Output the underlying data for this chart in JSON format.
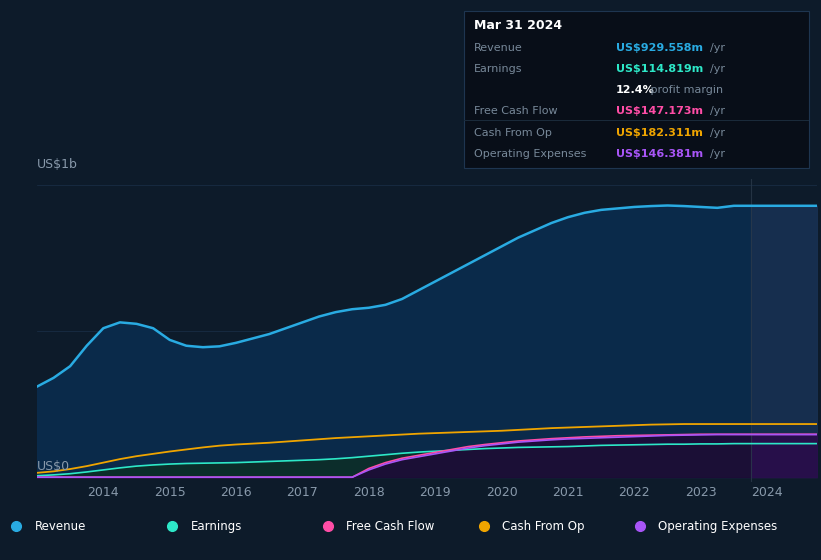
{
  "background_color": "#0d1b2a",
  "plot_bg_color": "#0d1b2a",
  "grid_color": "#1e3550",
  "text_color": "#8899aa",
  "ylabel_text": "US$1b",
  "y0_text": "US$0",
  "x_labels": [
    "2014",
    "2015",
    "2016",
    "2017",
    "2018",
    "2019",
    "2020",
    "2021",
    "2022",
    "2023",
    "2024"
  ],
  "series_colors": {
    "Revenue": "#29abe2",
    "Earnings": "#2de8c8",
    "Free Cash Flow": "#ff4da6",
    "Cash From Op": "#f0a500",
    "Operating Expenses": "#a855f7"
  },
  "fill_colors": {
    "Revenue": "#0a2a4a",
    "Earnings": "#0d2e28",
    "Operating Expenses": "#2a1a4a"
  },
  "tooltip": {
    "date": "Mar 31 2024",
    "bg": "#080e18",
    "border": "#2a3a4a",
    "rows": [
      {
        "label": "Revenue",
        "value": "US$929.558m",
        "unit": "/yr",
        "color": "#29abe2"
      },
      {
        "label": "Earnings",
        "value": "US$114.819m",
        "unit": "/yr",
        "color": "#2de8c8"
      },
      {
        "label": "",
        "value": "12.4%",
        "unit": " profit margin",
        "color": "#ffffff"
      },
      {
        "label": "Free Cash Flow",
        "value": "US$147.173m",
        "unit": "/yr",
        "color": "#ff4da6"
      },
      {
        "label": "Cash From Op",
        "value": "US$182.311m",
        "unit": "/yr",
        "color": "#f0a500"
      },
      {
        "label": "Operating Expenses",
        "value": "US$146.381m",
        "unit": "/yr",
        "color": "#a855f7"
      }
    ]
  },
  "legend": [
    {
      "label": "Revenue",
      "color": "#29abe2"
    },
    {
      "label": "Earnings",
      "color": "#2de8c8"
    },
    {
      "label": "Free Cash Flow",
      "color": "#ff4da6"
    },
    {
      "label": "Cash From Op",
      "color": "#f0a500"
    },
    {
      "label": "Operating Expenses",
      "color": "#a855f7"
    }
  ],
  "ylim_max": 1000,
  "highlight_shade": "#1a2a3a"
}
